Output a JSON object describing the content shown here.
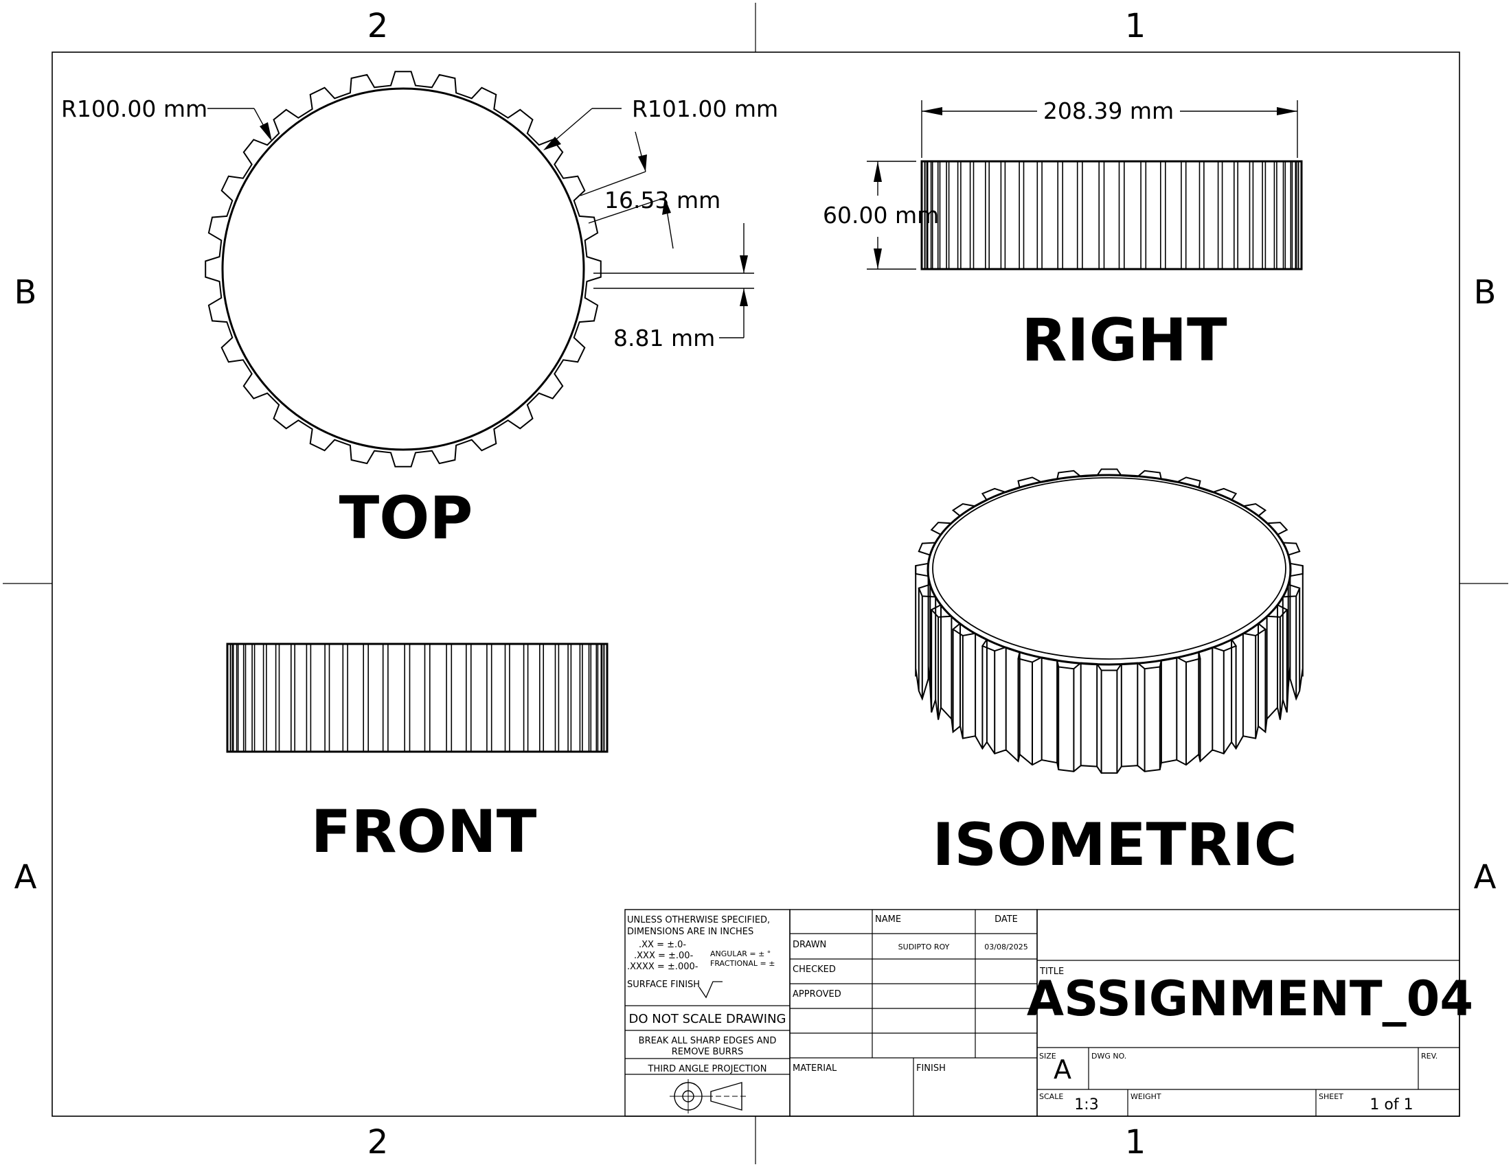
{
  "zones": {
    "top": [
      "2",
      "1"
    ],
    "bottom": [
      "2",
      "1"
    ],
    "left": [
      "B",
      "A"
    ],
    "right": [
      "B",
      "A"
    ]
  },
  "views": {
    "top": "TOP",
    "right": "RIGHT",
    "front": "FRONT",
    "isometric": "ISOMETRIC"
  },
  "dimensions": {
    "r_inner": "R100.00 mm",
    "r_outer": "R101.00 mm",
    "tooth_width": "16.53 mm",
    "tooth_depth": "8.81 mm",
    "diameter": "208.39 mm",
    "height": "60.00 mm"
  },
  "title_block": {
    "notes": {
      "line1": "UNLESS OTHERWISE SPECIFIED,",
      "line2": "DIMENSIONS ARE IN INCHES",
      "tol_xx": ".XX = ±.0-",
      "tol_xxx": ".XXX = ±.00-",
      "tol_xxxx": ".XXXX = ±.000-",
      "angular": "ANGULAR = ± °",
      "fractional": "FRACTIONAL = ±",
      "surface_finish": "SURFACE FINISH"
    },
    "do_not_scale": "DO NOT SCALE DRAWING",
    "break_edges_1": "BREAK ALL SHARP EDGES AND",
    "break_edges_2": "REMOVE BURRS",
    "projection": "THIRD ANGLE PROJECTION",
    "headers": {
      "name": "NAME",
      "date": "DATE"
    },
    "rows": {
      "drawn": "DRAWN",
      "checked": "CHECKED",
      "approved": "APPROVED"
    },
    "drawn_name": "SUDIPTO ROY",
    "drawn_date": "03/08/2025",
    "material_label": "MATERIAL",
    "finish_label": "FINISH",
    "title_label": "TITLE",
    "title": "ASSIGNMENT_04",
    "size_label": "SIZE",
    "size": "A",
    "dwg_no_label": "DWG NO.",
    "rev_label": "REV.",
    "scale_label": "SCALE",
    "scale": "1:3",
    "weight_label": "WEIGHT",
    "sheet_label": "SHEET",
    "sheet": "1 of 1"
  }
}
